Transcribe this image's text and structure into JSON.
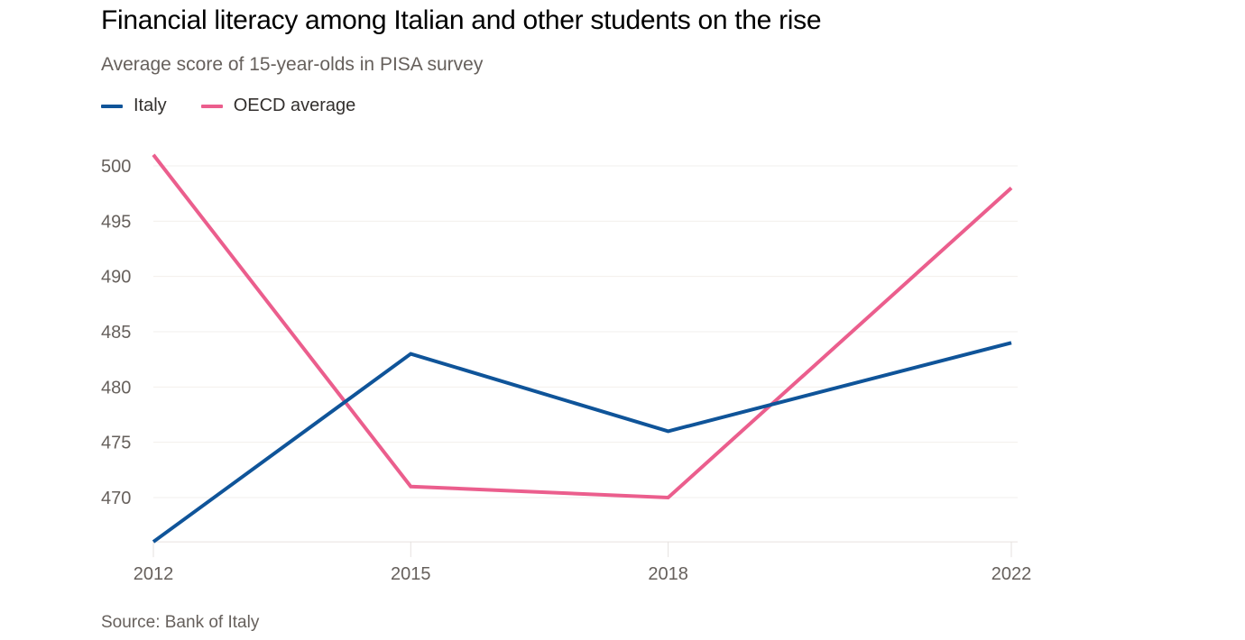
{
  "chart_data": {
    "type": "line",
    "title": "Financial literacy among Italian and other students on the rise",
    "subtitle": "Average score of 15-year-olds in PISA survey",
    "xlabel": "",
    "ylabel": "",
    "x": [
      "2012",
      "2015",
      "2018",
      "2022"
    ],
    "x_numeric": [
      2012,
      2015,
      2018,
      2022
    ],
    "series": [
      {
        "name": "Italy",
        "color": "#0f5499",
        "values": [
          466,
          483,
          476,
          484
        ]
      },
      {
        "name": "OECD average",
        "color": "#eb5e8d",
        "values": [
          501,
          471,
          470,
          498
        ]
      }
    ],
    "ylim": [
      466,
      501
    ],
    "yticks": [
      470,
      475,
      480,
      485,
      490,
      495,
      500
    ],
    "xticks": [
      "2012",
      "2015",
      "2018",
      "2022"
    ],
    "grid": true,
    "legend_position": "top-left",
    "source": "Source: Bank of Italy"
  }
}
